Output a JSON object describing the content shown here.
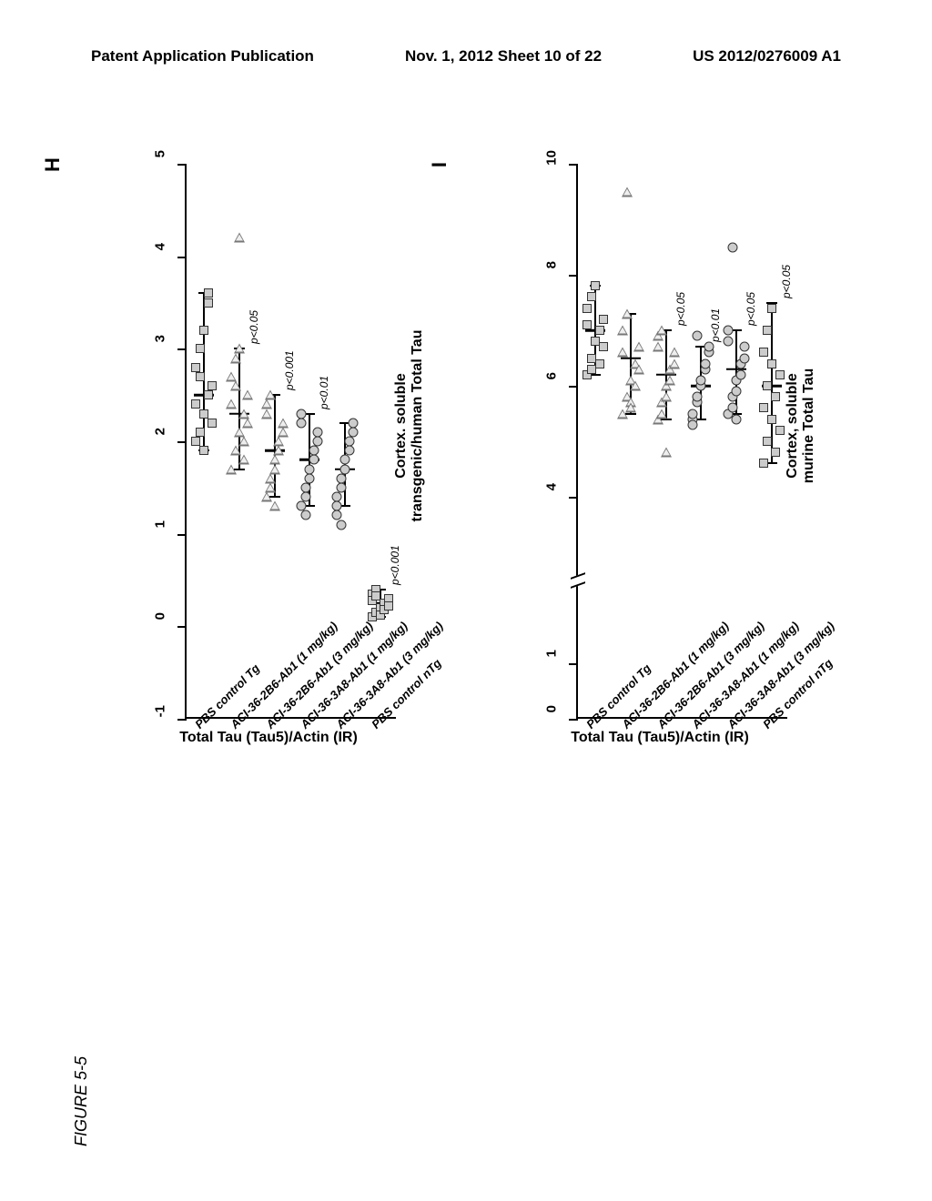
{
  "header": {
    "left": "Patent Application Publication",
    "center": "Nov. 1, 2012  Sheet 10 of 22",
    "right": "US 2012/0276009 A1"
  },
  "figure_label": "FIGURE 5-5",
  "panels": [
    {
      "id": "H",
      "title": "Cortex. soluble\ntransgenic/human Total Tau",
      "ylabel": "Total Tau (Tau5)/Actin (IR)",
      "ymin": -1,
      "ymax": 5,
      "yticks": [
        -1,
        0,
        1,
        2,
        3,
        4,
        5
      ],
      "groups": [
        "PBS control Tg",
        "ACI-36-2B6-Ab1 (1 mg/kg)",
        "ACI-36-2B6-Ab1 (3 mg/kg)",
        "ACI-36-3A8-Ab1 (1 mg/kg)",
        "ACI-36-3A8-Ab1 (3 mg/kg)",
        "PBS control nTg"
      ],
      "markers": [
        "square",
        "triangle",
        "triangle",
        "circle",
        "circle",
        "square"
      ],
      "pvalues": [
        null,
        "p<0.05",
        "p<0.001",
        "p<0.01",
        null,
        "p<0.001"
      ],
      "medians": [
        2.5,
        2.3,
        1.9,
        1.8,
        1.7,
        0.25
      ],
      "err_low": [
        1.9,
        1.7,
        1.4,
        1.3,
        1.3,
        0.1
      ],
      "err_high": [
        3.6,
        3.0,
        2.5,
        2.3,
        2.2,
        0.4
      ],
      "points": [
        [
          2.0,
          2.1,
          2.3,
          2.5,
          2.6,
          2.8,
          3.0,
          3.2,
          3.5,
          2.2,
          2.4,
          2.7,
          1.9,
          3.6
        ],
        [
          1.7,
          1.9,
          2.1,
          2.3,
          2.5,
          2.7,
          2.9,
          3.0,
          2.0,
          2.2,
          2.4,
          2.6,
          4.2,
          1.8
        ],
        [
          1.4,
          1.6,
          1.8,
          2.0,
          2.2,
          2.4,
          1.5,
          1.7,
          1.9,
          2.1,
          2.3,
          2.5,
          1.3
        ],
        [
          1.3,
          1.5,
          1.7,
          1.9,
          2.1,
          2.3,
          1.4,
          1.6,
          1.8,
          2.0,
          2.2,
          1.2
        ],
        [
          1.3,
          1.5,
          1.7,
          1.9,
          2.1,
          1.4,
          1.6,
          1.8,
          2.0,
          2.2,
          1.2,
          1.1
        ],
        [
          0.1,
          0.15,
          0.2,
          0.25,
          0.3,
          0.35,
          0.4,
          0.12,
          0.18,
          0.22,
          0.28,
          0.33
        ]
      ]
    },
    {
      "id": "I",
      "title": "Cortex, soluble\nmurine Total Tau",
      "ylabel": "Total Tau (Tau5)/Actin (IR)",
      "ymin": 0,
      "ymax": 10,
      "yticks": [
        0,
        1,
        4,
        6,
        8,
        10
      ],
      "axis_break": true,
      "groups": [
        "PBS control Tg",
        "ACI-36-2B6-Ab1 (1 mg/kg)",
        "ACI-36-2B6-Ab1 (3 mg/kg)",
        "ACI-36-3A8-Ab1 (1 mg/kg)",
        "ACI-36-3A8-Ab1 (3 mg/kg)",
        "PBS control nTg"
      ],
      "markers": [
        "square",
        "triangle",
        "triangle",
        "circle",
        "circle",
        "square"
      ],
      "pvalues": [
        null,
        null,
        "p<0.05",
        "p<0.01",
        "p<0.05",
        "p<0.05"
      ],
      "medians": [
        7.0,
        6.5,
        6.2,
        6.0,
        6.3,
        6.0
      ],
      "err_low": [
        6.2,
        5.5,
        5.4,
        5.4,
        5.5,
        4.6
      ],
      "err_high": [
        7.8,
        7.3,
        7.0,
        6.7,
        7.0,
        7.5
      ],
      "points": [
        [
          6.2,
          6.5,
          6.8,
          7.0,
          7.2,
          7.4,
          7.6,
          7.8,
          6.4,
          6.7,
          7.1,
          6.3
        ],
        [
          5.5,
          5.8,
          6.1,
          6.4,
          6.7,
          7.0,
          7.3,
          5.7,
          6.0,
          6.3,
          6.6,
          9.5,
          5.6
        ],
        [
          5.4,
          5.7,
          6.0,
          6.3,
          6.6,
          6.9,
          5.5,
          5.8,
          6.1,
          6.4,
          6.7,
          7.0,
          4.8
        ],
        [
          5.4,
          5.7,
          6.0,
          6.3,
          6.6,
          5.5,
          5.8,
          6.1,
          6.4,
          6.7,
          5.3,
          6.9
        ],
        [
          5.5,
          5.8,
          6.1,
          6.4,
          6.7,
          7.0,
          5.6,
          5.9,
          6.2,
          6.5,
          6.8,
          8.5,
          5.4
        ],
        [
          4.6,
          5.0,
          5.4,
          5.8,
          6.2,
          6.6,
          7.0,
          7.4,
          4.8,
          5.2,
          5.6,
          6.0,
          6.4
        ]
      ]
    }
  ],
  "style": {
    "colors": {
      "background": "#ffffff",
      "axis": "#000000",
      "text": "#000000",
      "marker_fill": "#cccccc",
      "marker_stroke": "#333333"
    },
    "fontsize": {
      "header": 17,
      "title": 16,
      "panel_label": 22,
      "tick": 15,
      "group_label": 13,
      "pval": 12,
      "figure_label": 18
    }
  }
}
